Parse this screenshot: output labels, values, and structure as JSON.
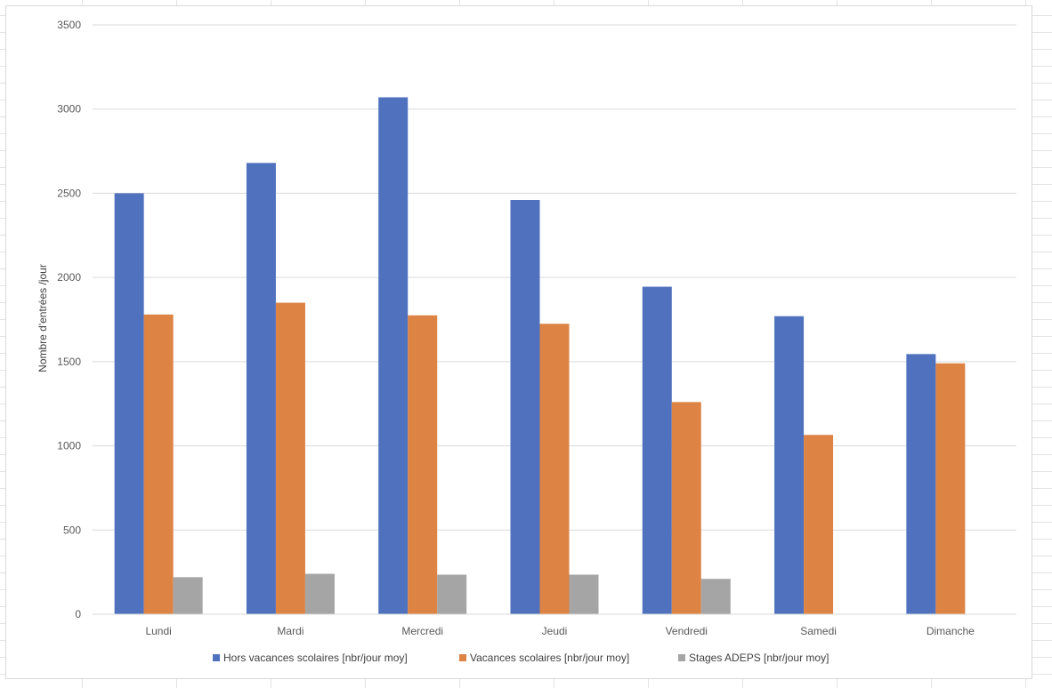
{
  "chart_data": {
    "type": "bar",
    "title": "",
    "xlabel": "",
    "ylabel": "Nombre d'entrées /jour",
    "ylim": [
      0,
      3500
    ],
    "yticks": [
      0,
      500,
      1000,
      1500,
      2000,
      2500,
      3000,
      3500
    ],
    "grid": true,
    "legend_position": "bottom",
    "categories": [
      "Lundi",
      "Mardi",
      "Mercredi",
      "Jeudi",
      "Vendredi",
      "Samedi",
      "Dimanche"
    ],
    "series": [
      {
        "name": "Hors vacances scolaires [nbr/jour moy]",
        "color": "#4F71BE",
        "values": [
          2500,
          2680,
          3070,
          2460,
          1945,
          1770,
          1545
        ]
      },
      {
        "name": "Vacances scolaires [nbr/jour moy]",
        "color": "#DD8344",
        "values": [
          1780,
          1850,
          1775,
          1725,
          1260,
          1065,
          1490
        ]
      },
      {
        "name": "Stages ADEPS [nbr/jour moy]",
        "color": "#A5A5A5",
        "values": [
          220,
          240,
          235,
          235,
          210,
          null,
          null
        ]
      }
    ]
  }
}
